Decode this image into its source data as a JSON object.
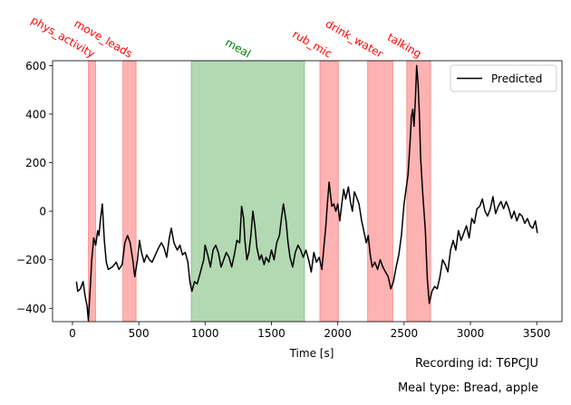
{
  "chart_data": {
    "type": "line",
    "xlabel": "Time [s]",
    "ylabel": "",
    "xlim": [
      -150,
      3690
    ],
    "ylim": [
      -455,
      620
    ],
    "xticks": [
      0,
      500,
      1000,
      1500,
      2000,
      2500,
      3000,
      3500
    ],
    "yticks": [
      -400,
      -200,
      0,
      200,
      400,
      600
    ],
    "legend": {
      "label": "Predicted",
      "position": "top-right"
    },
    "grid": false,
    "intervals": [
      {
        "label": "phys_activity",
        "start": 120,
        "end": 175,
        "color": "#ff0000",
        "label_color": "#ff0000"
      },
      {
        "label": "move_leads",
        "start": 380,
        "end": 480,
        "color": "#ff0000",
        "label_color": "#ff0000"
      },
      {
        "label": "meal",
        "start": 895,
        "end": 1750,
        "color": "#008000",
        "label_color": "#008000"
      },
      {
        "label": "rub_mic",
        "start": 1865,
        "end": 2005,
        "color": "#ff0000",
        "label_color": "#ff0000"
      },
      {
        "label": "drink_water",
        "start": 2225,
        "end": 2415,
        "color": "#ff0000",
        "label_color": "#ff0000"
      },
      {
        "label": "talking",
        "start": 2520,
        "end": 2700,
        "color": "#ff0000",
        "label_color": "#ff0000"
      }
    ],
    "series": [
      {
        "name": "Predicted",
        "color": "#000000",
        "points": [
          [
            30,
            -290
          ],
          [
            40,
            -330
          ],
          [
            60,
            -320
          ],
          [
            80,
            -290
          ],
          [
            95,
            -350
          ],
          [
            110,
            -390
          ],
          [
            120,
            -450
          ],
          [
            135,
            -310
          ],
          [
            145,
            -200
          ],
          [
            160,
            -110
          ],
          [
            175,
            -140
          ],
          [
            190,
            -80
          ],
          [
            200,
            -100
          ],
          [
            210,
            -40
          ],
          [
            225,
            30
          ],
          [
            240,
            -120
          ],
          [
            255,
            -210
          ],
          [
            270,
            -240
          ],
          [
            300,
            -230
          ],
          [
            330,
            -210
          ],
          [
            350,
            -240
          ],
          [
            375,
            -220
          ],
          [
            395,
            -130
          ],
          [
            415,
            -100
          ],
          [
            435,
            -130
          ],
          [
            455,
            -200
          ],
          [
            470,
            -270
          ],
          [
            490,
            -200
          ],
          [
            505,
            -120
          ],
          [
            520,
            -170
          ],
          [
            540,
            -210
          ],
          [
            560,
            -180
          ],
          [
            580,
            -200
          ],
          [
            600,
            -210
          ],
          [
            625,
            -180
          ],
          [
            650,
            -150
          ],
          [
            670,
            -130
          ],
          [
            690,
            -150
          ],
          [
            710,
            -190
          ],
          [
            730,
            -110
          ],
          [
            745,
            -70
          ],
          [
            765,
            -130
          ],
          [
            790,
            -160
          ],
          [
            810,
            -140
          ],
          [
            830,
            -180
          ],
          [
            850,
            -170
          ],
          [
            870,
            -210
          ],
          [
            885,
            -290
          ],
          [
            900,
            -330
          ],
          [
            920,
            -290
          ],
          [
            940,
            -300
          ],
          [
            960,
            -260
          ],
          [
            975,
            -230
          ],
          [
            990,
            -200
          ],
          [
            1000,
            -140
          ],
          [
            1020,
            -180
          ],
          [
            1040,
            -230
          ],
          [
            1060,
            -160
          ],
          [
            1080,
            -140
          ],
          [
            1100,
            -170
          ],
          [
            1120,
            -230
          ],
          [
            1140,
            -200
          ],
          [
            1160,
            -170
          ],
          [
            1180,
            -190
          ],
          [
            1200,
            -230
          ],
          [
            1220,
            -180
          ],
          [
            1240,
            -120
          ],
          [
            1260,
            -130
          ],
          [
            1275,
            20
          ],
          [
            1290,
            -30
          ],
          [
            1300,
            -120
          ],
          [
            1315,
            -200
          ],
          [
            1330,
            -170
          ],
          [
            1345,
            -100
          ],
          [
            1360,
            0
          ],
          [
            1375,
            -60
          ],
          [
            1390,
            -150
          ],
          [
            1410,
            -200
          ],
          [
            1425,
            -180
          ],
          [
            1445,
            -220
          ],
          [
            1460,
            -190
          ],
          [
            1480,
            -210
          ],
          [
            1500,
            -160
          ],
          [
            1520,
            -200
          ],
          [
            1540,
            -130
          ],
          [
            1560,
            -100
          ],
          [
            1575,
            -30
          ],
          [
            1590,
            30
          ],
          [
            1610,
            -40
          ],
          [
            1625,
            -130
          ],
          [
            1640,
            -190
          ],
          [
            1660,
            -230
          ],
          [
            1680,
            -170
          ],
          [
            1700,
            -140
          ],
          [
            1720,
            -160
          ],
          [
            1740,
            -190
          ],
          [
            1760,
            -160
          ],
          [
            1780,
            -200
          ],
          [
            1800,
            -250
          ],
          [
            1820,
            -170
          ],
          [
            1840,
            -210
          ],
          [
            1860,
            -190
          ],
          [
            1880,
            -240
          ],
          [
            1895,
            -150
          ],
          [
            1910,
            -60
          ],
          [
            1920,
            20
          ],
          [
            1935,
            120
          ],
          [
            1945,
            70
          ],
          [
            1955,
            20
          ],
          [
            1970,
            30
          ],
          [
            1985,
            0
          ],
          [
            2000,
            30
          ],
          [
            2015,
            -40
          ],
          [
            2030,
            30
          ],
          [
            2045,
            90
          ],
          [
            2060,
            50
          ],
          [
            2080,
            100
          ],
          [
            2095,
            40
          ],
          [
            2110,
            0
          ],
          [
            2125,
            80
          ],
          [
            2140,
            60
          ],
          [
            2160,
            30
          ],
          [
            2180,
            -40
          ],
          [
            2200,
            -90
          ],
          [
            2215,
            -130
          ],
          [
            2230,
            -100
          ],
          [
            2245,
            -180
          ],
          [
            2260,
            -230
          ],
          [
            2280,
            -210
          ],
          [
            2300,
            -240
          ],
          [
            2320,
            -200
          ],
          [
            2340,
            -230
          ],
          [
            2360,
            -250
          ],
          [
            2380,
            -270
          ],
          [
            2400,
            -320
          ],
          [
            2420,
            -290
          ],
          [
            2440,
            -230
          ],
          [
            2460,
            -180
          ],
          [
            2480,
            -100
          ],
          [
            2500,
            30
          ],
          [
            2515,
            90
          ],
          [
            2530,
            150
          ],
          [
            2545,
            280
          ],
          [
            2555,
            390
          ],
          [
            2565,
            420
          ],
          [
            2575,
            350
          ],
          [
            2585,
            460
          ],
          [
            2595,
            600
          ],
          [
            2605,
            530
          ],
          [
            2615,
            400
          ],
          [
            2625,
            220
          ],
          [
            2640,
            80
          ],
          [
            2660,
            -80
          ],
          [
            2675,
            -280
          ],
          [
            2690,
            -380
          ],
          [
            2710,
            -330
          ],
          [
            2730,
            -310
          ],
          [
            2750,
            -320
          ],
          [
            2770,
            -270
          ],
          [
            2790,
            -200
          ],
          [
            2810,
            -220
          ],
          [
            2830,
            -250
          ],
          [
            2850,
            -160
          ],
          [
            2870,
            -120
          ],
          [
            2890,
            -160
          ],
          [
            2910,
            -80
          ],
          [
            2930,
            -120
          ],
          [
            2950,
            -90
          ],
          [
            2970,
            -60
          ],
          [
            2990,
            -110
          ],
          [
            3010,
            -30
          ],
          [
            3030,
            -50
          ],
          [
            3050,
            10
          ],
          [
            3070,
            20
          ],
          [
            3090,
            50
          ],
          [
            3110,
            0
          ],
          [
            3130,
            -20
          ],
          [
            3150,
            10
          ],
          [
            3170,
            60
          ],
          [
            3190,
            -10
          ],
          [
            3210,
            20
          ],
          [
            3230,
            40
          ],
          [
            3250,
            10
          ],
          [
            3270,
            40
          ],
          [
            3290,
            10
          ],
          [
            3310,
            -30
          ],
          [
            3330,
            0
          ],
          [
            3350,
            -40
          ],
          [
            3370,
            -10
          ],
          [
            3390,
            -20
          ],
          [
            3410,
            -50
          ],
          [
            3430,
            -30
          ],
          [
            3450,
            -60
          ],
          [
            3470,
            -70
          ],
          [
            3490,
            -40
          ],
          [
            3505,
            -90
          ]
        ]
      }
    ]
  },
  "footer": {
    "recording": "Recording id: T6PCJU",
    "meal": "Meal type: Bread, apple"
  }
}
